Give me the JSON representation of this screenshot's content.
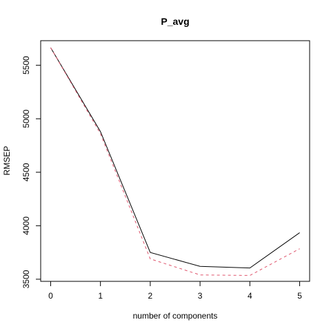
{
  "chart_data": {
    "type": "line",
    "title": "P_avg",
    "xlabel": "number of components",
    "ylabel": "RMSEP",
    "x": [
      0,
      1,
      2,
      3,
      4,
      5
    ],
    "xlim": [
      -0.2,
      5.2
    ],
    "ylim": [
      3480,
      5730
    ],
    "xticks": [
      0,
      1,
      2,
      3,
      4,
      5
    ],
    "yticks": [
      3500,
      4000,
      4500,
      5000,
      5500
    ],
    "grid": false,
    "series": [
      {
        "values": [
          5665,
          4880,
          3750,
          3620,
          3605,
          3935
        ],
        "color": "#000000",
        "dash": "solid"
      },
      {
        "values": [
          5665,
          4860,
          3690,
          3540,
          3535,
          3785
        ],
        "color": "#DF536B",
        "dash": "dashed"
      }
    ]
  }
}
